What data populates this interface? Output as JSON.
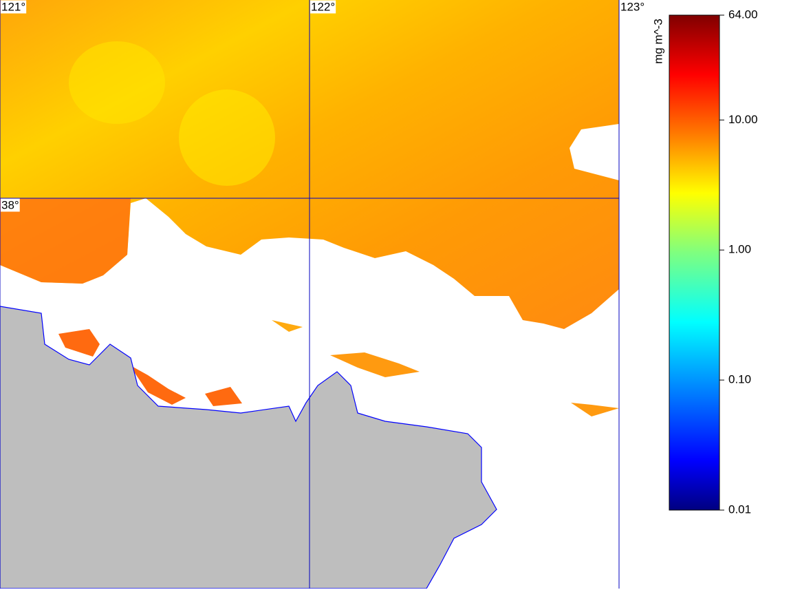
{
  "map": {
    "lon_lines": [
      {
        "value": 121,
        "label": "121°"
      },
      {
        "value": 122,
        "label": "122°"
      },
      {
        "value": 123,
        "label": "123°"
      }
    ],
    "lat_lines": [
      {
        "value": 38,
        "label": "38°"
      }
    ],
    "lon_range": [
      121,
      123
    ],
    "lat_range": [
      36.74,
      38.64
    ]
  },
  "colorbar": {
    "label": "mg m^-3",
    "scale": "log",
    "range": [
      0.01,
      64
    ],
    "ticks": [
      {
        "value": 64,
        "label": "64.00"
      },
      {
        "value": 10,
        "label": "10.00"
      },
      {
        "value": 1,
        "label": "1.00"
      },
      {
        "value": 0.1,
        "label": "0.10"
      },
      {
        "value": 0.01,
        "label": "0.01"
      }
    ]
  }
}
